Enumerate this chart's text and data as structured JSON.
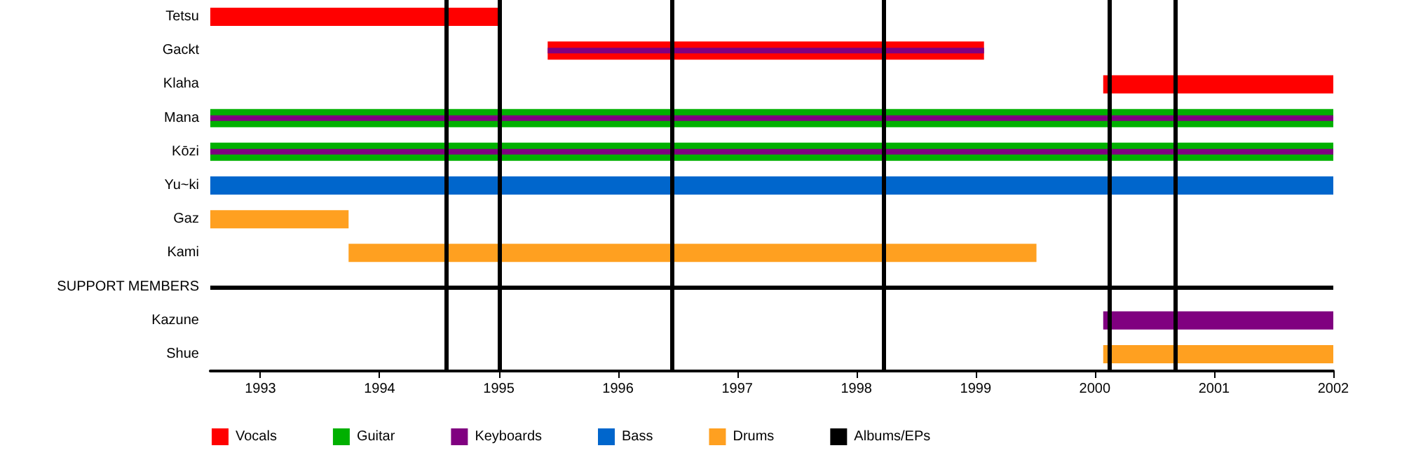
{
  "chart_data": {
    "type": "bar",
    "orientation": "horizontal",
    "categories": [
      "Tetsu",
      "Gackt",
      "Klaha",
      "Mana",
      "Kōzi",
      "Yu~ki",
      "Gaz",
      "Kami",
      "SUPPORT MEMBERS",
      "Kazune",
      "Shue"
    ],
    "series": [
      {
        "name": "Vocals",
        "color": "#ff0000",
        "base": [
          1992.58,
          1995.41,
          2000.07,
          null,
          null,
          null,
          null,
          null,
          null,
          null,
          null
        ],
        "values": [
          2.42,
          3.66,
          1.93,
          null,
          null,
          null,
          null,
          null,
          null,
          null,
          null
        ]
      },
      {
        "name": "Guitar",
        "color": "#00b000",
        "base": [
          null,
          null,
          null,
          1992.58,
          1992.58,
          null,
          null,
          null,
          null,
          null,
          null
        ],
        "values": [
          null,
          null,
          null,
          9.42,
          9.42,
          null,
          null,
          null,
          null,
          null,
          null
        ]
      },
      {
        "name": "Keyboards",
        "color": "#800080",
        "base": [
          null,
          1995.41,
          null,
          1992.58,
          1992.58,
          null,
          null,
          null,
          null,
          2000.07,
          null
        ],
        "values": [
          null,
          3.66,
          null,
          9.42,
          9.42,
          null,
          null,
          null,
          null,
          1.93,
          null
        ]
      },
      {
        "name": "Bass",
        "color": "#0066cc",
        "base": [
          null,
          null,
          null,
          null,
          null,
          1992.58,
          null,
          null,
          null,
          null,
          null
        ],
        "values": [
          null,
          null,
          null,
          null,
          null,
          9.42,
          null,
          null,
          null,
          null,
          null
        ]
      },
      {
        "name": "Drums",
        "color": "#ffa020",
        "base": [
          null,
          null,
          null,
          null,
          null,
          null,
          1992.58,
          1993.74,
          null,
          null,
          2000.07
        ],
        "values": [
          null,
          null,
          null,
          null,
          null,
          null,
          1.16,
          5.77,
          null,
          null,
          1.93
        ]
      }
    ],
    "ref_lines": [
      {
        "axis": "x",
        "value": 1994.56,
        "label": "Albums/EPs",
        "color": "#000000"
      },
      {
        "axis": "x",
        "value": 1995.0,
        "color": "#000000"
      },
      {
        "axis": "x",
        "value": 1996.45,
        "color": "#000000"
      },
      {
        "axis": "x",
        "value": 1998.23,
        "color": "#000000"
      },
      {
        "axis": "x",
        "value": 2000.12,
        "color": "#000000"
      },
      {
        "axis": "x",
        "value": 2000.67,
        "color": "#000000"
      },
      {
        "axis": "y",
        "value": "SUPPORT MEMBERS",
        "color": "#000000"
      }
    ],
    "xlim": [
      1992.58,
      2002
    ],
    "xticks": [
      1993,
      1994,
      1995,
      1996,
      1997,
      1998,
      1999,
      2000,
      2001,
      2002
    ],
    "grid": false,
    "legend": "bottom"
  }
}
